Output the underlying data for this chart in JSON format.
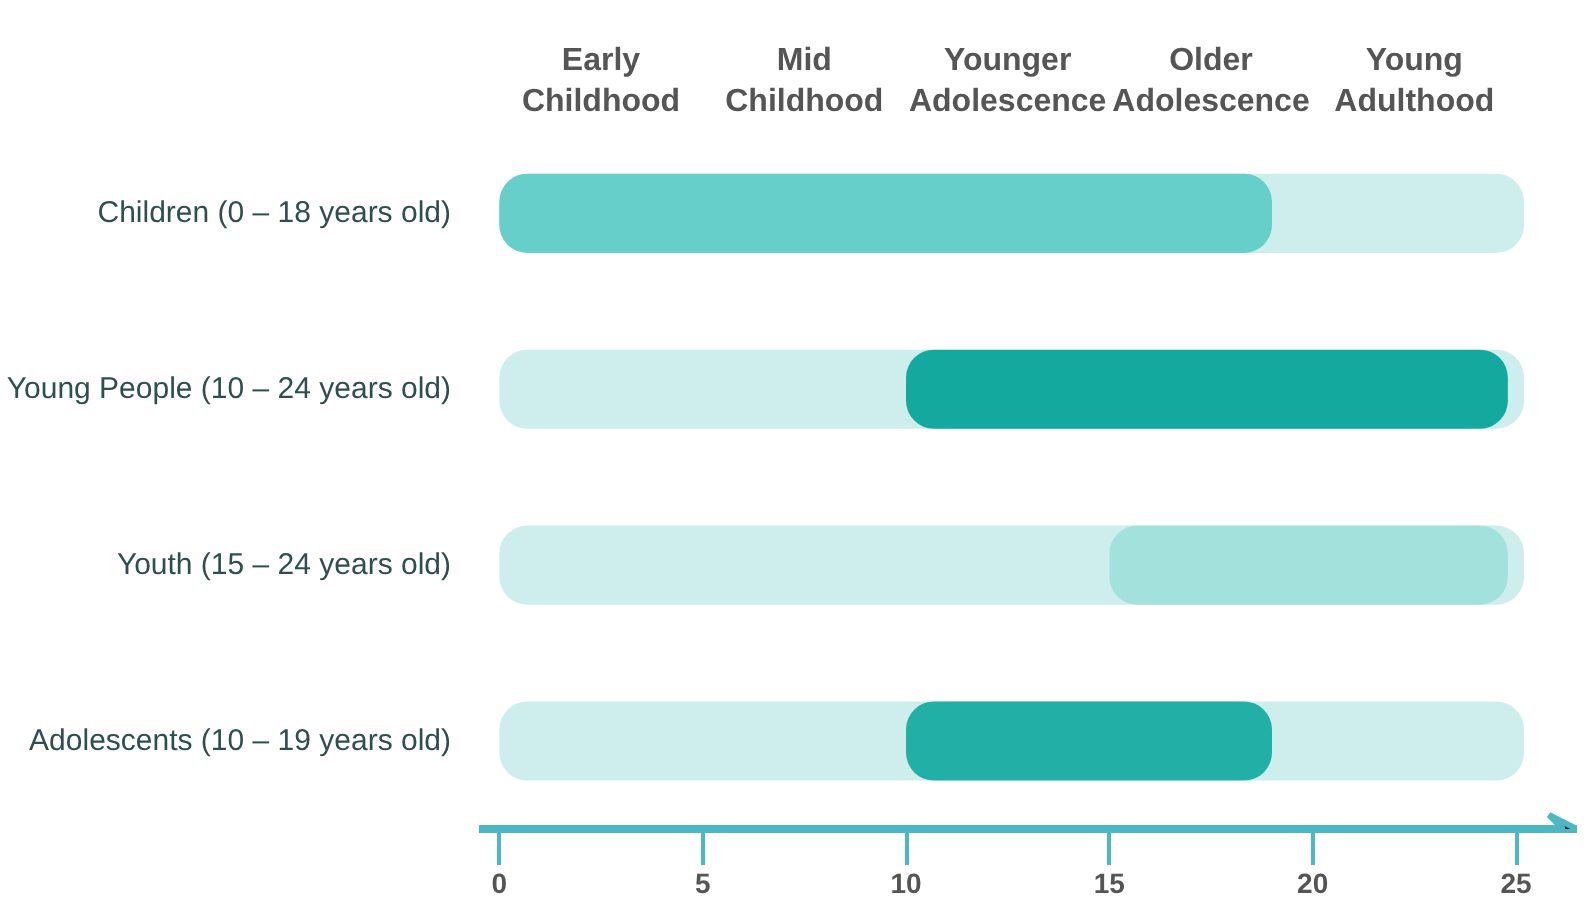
{
  "chart_data": {
    "type": "bar",
    "orientation": "horizontal",
    "categories": [
      "Children (0 – 18 years old)",
      "Young People (10 – 24 years old)",
      "Youth (15 – 24 years old)",
      "Adolescents (10 – 19 years old)"
    ],
    "series": [
      {
        "color": "#cdeeed",
        "base": [
          0,
          0,
          0,
          0
        ],
        "values": [
          25.2,
          25.2,
          25.2,
          25.2
        ]
      },
      {
        "colors": [
          "#66cfc9",
          "#14a99f",
          "#a3e1dd",
          "#22b0a6"
        ],
        "base": [
          0,
          10,
          15,
          10
        ],
        "values": [
          19,
          14.8,
          9.8,
          9
        ]
      }
    ],
    "xlim": [
      -0.5,
      26.5
    ],
    "xticks": [
      0,
      5,
      10,
      15,
      20,
      25
    ],
    "annotations": [
      "Early Childhood",
      "Mid Childhood",
      "Younger Adolescence",
      "Older Adolescence",
      "Young Adulthood"
    ]
  }
}
